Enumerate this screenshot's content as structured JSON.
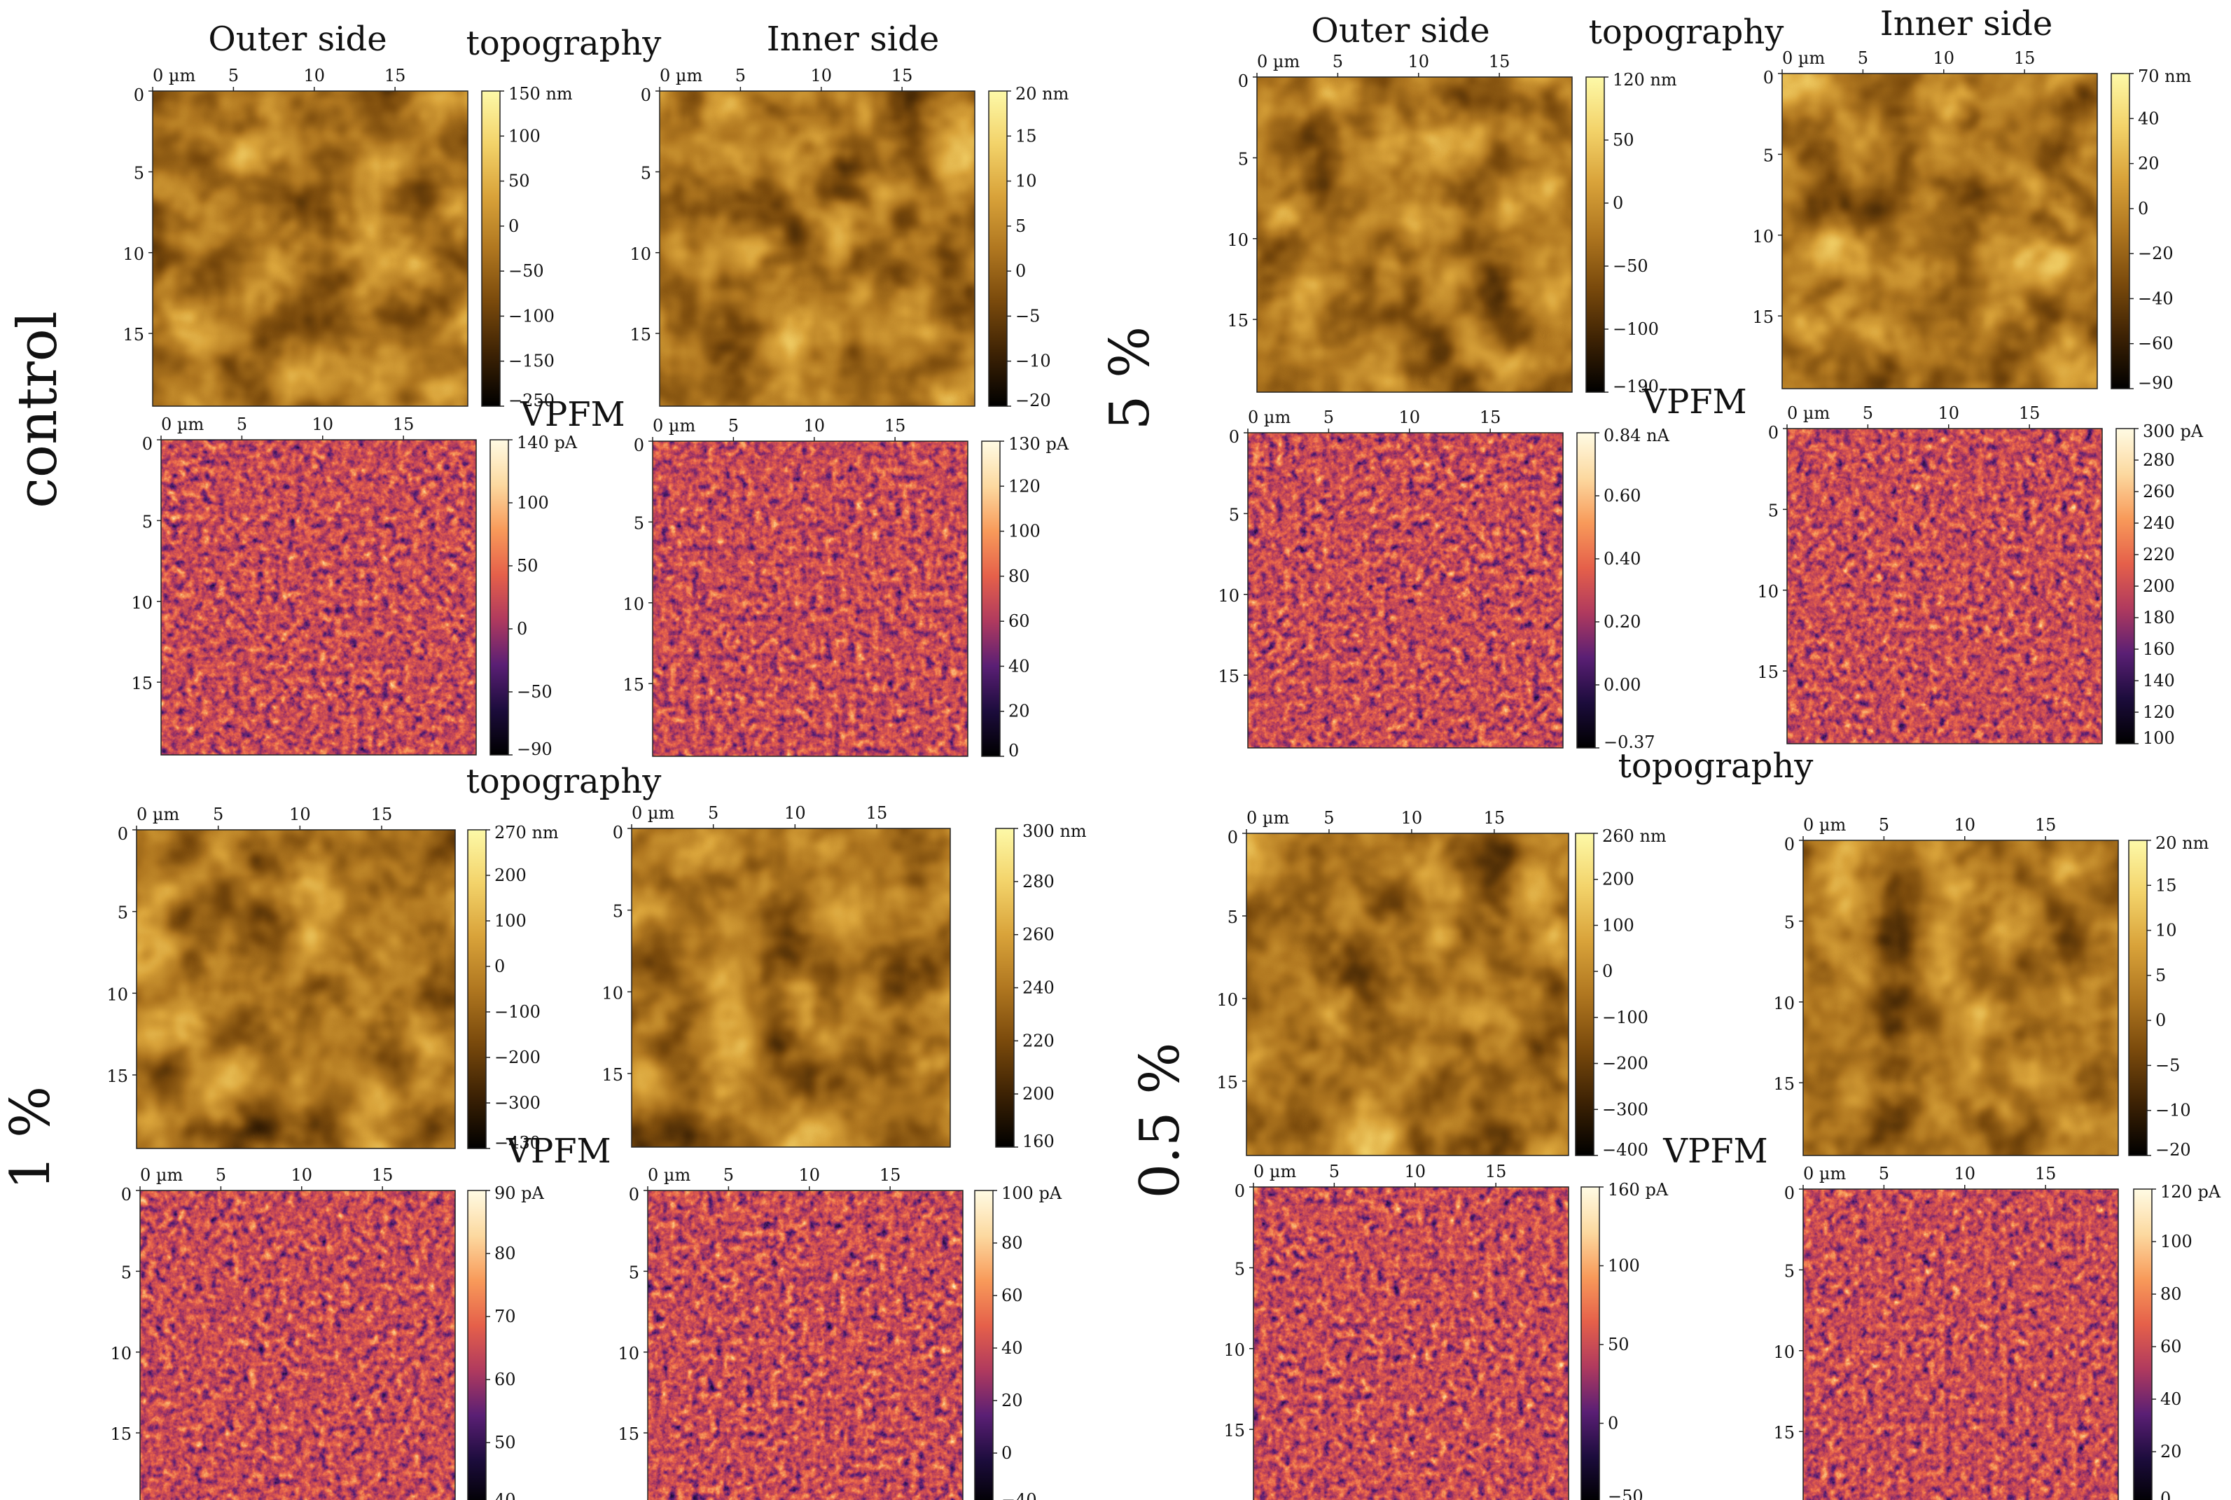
{
  "quadrants": [
    {
      "id": "control",
      "group_label": "control",
      "headings": {
        "outer": "Outer side",
        "topo": "topography",
        "inner": "Inner side",
        "vpfm": "VPFM"
      },
      "panels": [
        {
          "kind": "topo",
          "palette": "gold",
          "seed": 11,
          "axis_x": [
            "0 µm",
            "5",
            "10",
            "15"
          ],
          "axis_y": [
            "0",
            "5",
            "10",
            "15"
          ],
          "cb_labels": [
            "150 nm",
            "100",
            "50",
            "0",
            "−50",
            "−100",
            "−150",
            "−250"
          ]
        },
        {
          "kind": "topo",
          "palette": "gold",
          "seed": 23,
          "axis_x": [
            "0 µm",
            "5",
            "10",
            "15"
          ],
          "axis_y": [
            "0",
            "5",
            "10",
            "15"
          ],
          "cb_labels": [
            "20 nm",
            "15",
            "10",
            "5",
            "0",
            "−5",
            "−10",
            "−20"
          ]
        },
        {
          "kind": "vpfm",
          "palette": "inferno",
          "seed": 37,
          "axis_x": [
            "0 µm",
            "5",
            "10",
            "15"
          ],
          "axis_y": [
            "0",
            "5",
            "10",
            "15"
          ],
          "cb_labels": [
            "140 pA",
            "100",
            "50",
            "0",
            "−50",
            "−90"
          ]
        },
        {
          "kind": "vpfm",
          "palette": "inferno",
          "seed": 41,
          "axis_x": [
            "0 µm",
            "5",
            "10",
            "15"
          ],
          "axis_y": [
            "0",
            "5",
            "10",
            "15"
          ],
          "cb_labels": [
            "130 pA",
            "120",
            "100",
            "80",
            "60",
            "40",
            "20",
            "0"
          ]
        }
      ]
    },
    {
      "id": "5pct",
      "group_label": "5 %",
      "headings": {
        "outer": "Outer side",
        "topo": "topography",
        "inner": "Inner side",
        "vpfm": "VPFM"
      },
      "panels": [
        {
          "kind": "topo",
          "palette": "gold",
          "seed": 53,
          "axis_x": [
            "0 µm",
            "5",
            "10",
            "15"
          ],
          "axis_y": [
            "0",
            "5",
            "10",
            "15"
          ],
          "cb_labels": [
            "120 nm",
            "50",
            "0",
            "−50",
            "−100",
            "−190"
          ]
        },
        {
          "kind": "topo",
          "palette": "gold",
          "seed": 67,
          "axis_x": [
            "0 µm",
            "5",
            "10",
            "15"
          ],
          "axis_y": [
            "0",
            "5",
            "10",
            "15"
          ],
          "cb_labels": [
            "70 nm",
            "40",
            "20",
            "0",
            "−20",
            "−40",
            "−60",
            "−90"
          ]
        },
        {
          "kind": "vpfm",
          "palette": "inferno",
          "seed": 71,
          "axis_x": [
            "0 µm",
            "5",
            "10",
            "15"
          ],
          "axis_y": [
            "0",
            "5",
            "10",
            "15"
          ],
          "cb_labels": [
            "0.84 nA",
            "0.60",
            "0.40",
            "0.20",
            "0.00",
            "−0.37"
          ]
        },
        {
          "kind": "vpfm",
          "palette": "inferno",
          "seed": 83,
          "axis_x": [
            "0 µm",
            "5",
            "10",
            "15"
          ],
          "axis_y": [
            "0",
            "5",
            "10",
            "15"
          ],
          "cb_labels": [
            "300 pA",
            "280",
            "260",
            "240",
            "220",
            "200",
            "180",
            "160",
            "140",
            "120",
            "100"
          ]
        }
      ]
    },
    {
      "id": "1pct",
      "group_label": "1 %",
      "headings": {
        "outer": "",
        "topo": "topography",
        "inner": "",
        "vpfm": "VPFM"
      },
      "panels": [
        {
          "kind": "topo",
          "palette": "gold",
          "seed": 97,
          "axis_x": [
            "0 µm",
            "5",
            "10",
            "15"
          ],
          "axis_y": [
            "0",
            "5",
            "10",
            "15"
          ],
          "cb_labels": [
            "270 nm",
            "200",
            "100",
            "0",
            "−100",
            "−200",
            "−300",
            "−430"
          ]
        },
        {
          "kind": "topo",
          "palette": "gold",
          "seed": 101,
          "axis_x": [
            "0 µm",
            "5",
            "10",
            "15"
          ],
          "axis_y": [
            "0",
            "5",
            "10",
            "15"
          ],
          "cb_labels": [
            "300 nm",
            "280",
            "260",
            "240",
            "220",
            "200",
            "160"
          ]
        },
        {
          "kind": "vpfm",
          "palette": "inferno",
          "seed": 109,
          "axis_x": [
            "0 µm",
            "5",
            "10",
            "15"
          ],
          "axis_y": [
            "0",
            "5",
            "10",
            "15"
          ],
          "cb_labels": [
            "90 pA",
            "80",
            "70",
            "60",
            "50",
            "40"
          ]
        },
        {
          "kind": "vpfm",
          "palette": "inferno",
          "seed": 113,
          "axis_x": [
            "0 µm",
            "5",
            "10",
            "15"
          ],
          "axis_y": [
            "0",
            "5",
            "10",
            "15"
          ],
          "cb_labels": [
            "100 pA",
            "80",
            "60",
            "40",
            "20",
            "0",
            "−40"
          ]
        }
      ]
    },
    {
      "id": "05pct",
      "group_label": "0.5 %",
      "headings": {
        "outer": "",
        "topo": "topography",
        "inner": "",
        "vpfm": "VPFM"
      },
      "panels": [
        {
          "kind": "topo",
          "palette": "gold",
          "seed": 127,
          "axis_x": [
            "0 µm",
            "5",
            "10",
            "15"
          ],
          "axis_y": [
            "0",
            "5",
            "10",
            "15"
          ],
          "cb_labels": [
            "260 nm",
            "200",
            "100",
            "0",
            "−100",
            "−200",
            "−300",
            "−400"
          ]
        },
        {
          "kind": "topo",
          "palette": "gold",
          "seed": 131,
          "axis_x": [
            "0 µm",
            "5",
            "10",
            "15"
          ],
          "axis_y": [
            "0",
            "5",
            "10",
            "15"
          ],
          "cb_labels": [
            "20 nm",
            "15",
            "10",
            "5",
            "0",
            "−5",
            "−10",
            "−20"
          ]
        },
        {
          "kind": "vpfm",
          "palette": "inferno",
          "seed": 137,
          "axis_x": [
            "0 µm",
            "5",
            "10",
            "15"
          ],
          "axis_y": [
            "0",
            "5",
            "10",
            "15"
          ],
          "cb_labels": [
            "160 pA",
            "100",
            "50",
            "0",
            "−50"
          ]
        },
        {
          "kind": "vpfm",
          "palette": "inferno",
          "seed": 139,
          "axis_x": [
            "0 µm",
            "5",
            "10",
            "15"
          ],
          "axis_y": [
            "0",
            "5",
            "10",
            "15"
          ],
          "cb_labels": [
            "120 pA",
            "100",
            "80",
            "60",
            "40",
            "20",
            "0"
          ]
        }
      ]
    }
  ]
}
